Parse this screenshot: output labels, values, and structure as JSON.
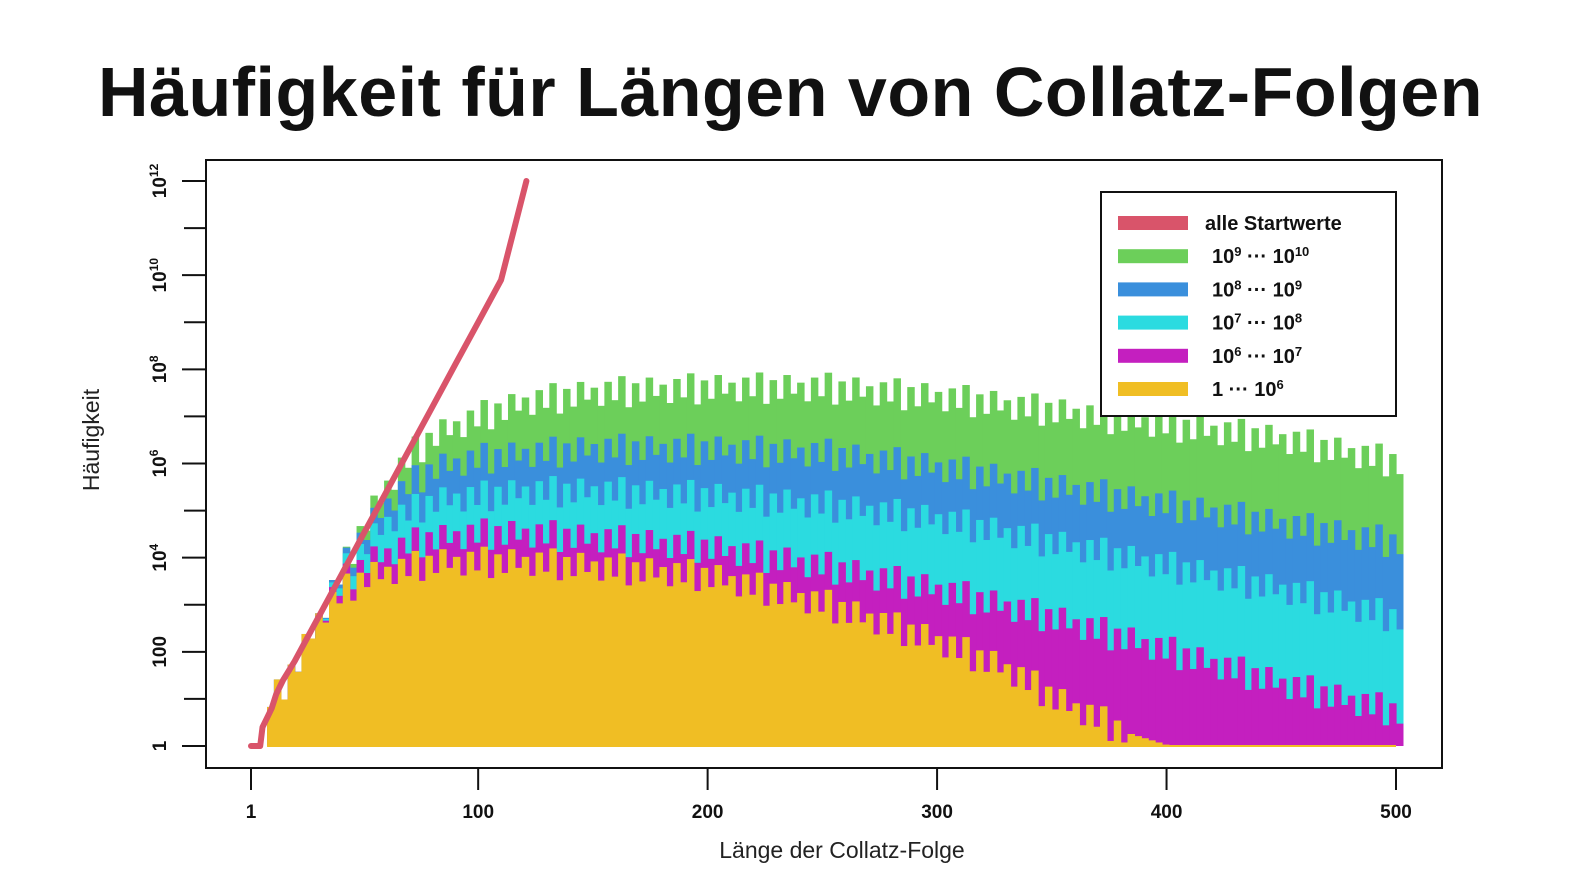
{
  "title": "Häufigkeit für Längen von Collatz-Folgen",
  "chart_data": {
    "type": "bar",
    "title": "Häufigkeit für Längen von Collatz-Folgen",
    "xlabel": "Länge der Collatz-Folge",
    "ylabel": "Häufigkeit",
    "x_scale": "linear",
    "y_scale": "log",
    "xlim": [
      1,
      500
    ],
    "ylim_log10": [
      0,
      12
    ],
    "x_ticks": [
      {
        "value": 1,
        "label": "1"
      },
      {
        "value": 100,
        "label": "100"
      },
      {
        "value": 200,
        "label": "200"
      },
      {
        "value": 300,
        "label": "300"
      },
      {
        "value": 400,
        "label": "400"
      },
      {
        "value": 500,
        "label": "500"
      }
    ],
    "y_ticks": [
      {
        "log10": 0,
        "base": "1",
        "exp": ""
      },
      {
        "log10": 2,
        "base": "100",
        "exp": ""
      },
      {
        "log10": 4,
        "base": "10",
        "exp": "4"
      },
      {
        "log10": 6,
        "base": "10",
        "exp": "6"
      },
      {
        "log10": 8,
        "base": "10",
        "exp": "8"
      },
      {
        "log10": 10,
        "base": "10",
        "exp": "10"
      },
      {
        "log10": 12,
        "base": "10",
        "exp": "12"
      }
    ],
    "y_minor_ticks_log10": [
      1,
      3,
      5,
      7,
      9,
      11
    ],
    "legend_position": "top-right",
    "series": [
      {
        "name": "alle Startwerte",
        "name_parts": [
          "alle Startwerte"
        ],
        "color": "#d9546a",
        "kind": "line",
        "points_x": [
          1,
          5,
          6,
          8,
          10,
          12,
          15,
          20,
          30,
          40,
          50,
          60,
          70,
          80,
          90,
          100,
          110,
          121
        ],
        "points_log10": [
          0,
          0,
          0.4,
          0.6,
          0.8,
          1.1,
          1.4,
          1.8,
          2.7,
          3.6,
          4.5,
          5.4,
          6.3,
          7.2,
          8.1,
          9.0,
          9.9,
          12.0
        ]
      },
      {
        "name": "10^9 ··· 10^10",
        "name_parts": [
          "10",
          "9",
          " ··· 10",
          "10"
        ],
        "color": "#6ccf5a",
        "kind": "bars",
        "profile_x": [
          10,
          20,
          30,
          40,
          50,
          60,
          70,
          80,
          100,
          120,
          150,
          200,
          250,
          300,
          350,
          400,
          450,
          500
        ],
        "profile_log10": [
          1.0,
          1.8,
          2.8,
          3.8,
          4.8,
          5.6,
          6.2,
          6.6,
          7.0,
          7.3,
          7.5,
          7.6,
          7.6,
          7.4,
          7.1,
          6.8,
          6.5,
          6.0
        ]
      },
      {
        "name": "10^8 ··· 10^9",
        "name_parts": [
          "10",
          "8",
          " ··· 10",
          "9"
        ],
        "color": "#3a8fdc",
        "kind": "bars",
        "profile_x": [
          10,
          20,
          30,
          40,
          50,
          60,
          70,
          80,
          100,
          120,
          150,
          200,
          250,
          300,
          350,
          400,
          450,
          500
        ],
        "profile_log10": [
          1.0,
          1.8,
          2.8,
          3.8,
          4.6,
          5.2,
          5.6,
          5.9,
          6.1,
          6.2,
          6.3,
          6.3,
          6.2,
          5.9,
          5.5,
          5.1,
          4.7,
          4.3
        ]
      },
      {
        "name": "10^7 ··· 10^8",
        "name_parts": [
          "10",
          "7",
          " ··· 10",
          "8"
        ],
        "color": "#2bdbe0",
        "kind": "bars",
        "profile_x": [
          10,
          20,
          30,
          40,
          50,
          60,
          70,
          80,
          100,
          120,
          150,
          200,
          250,
          300,
          350,
          400,
          450,
          500
        ],
        "profile_log10": [
          1.0,
          1.8,
          2.8,
          3.7,
          4.3,
          4.8,
          5.0,
          5.2,
          5.3,
          5.4,
          5.4,
          5.3,
          5.1,
          4.8,
          4.3,
          3.8,
          3.3,
          2.7
        ]
      },
      {
        "name": "10^6 ··· 10^7",
        "name_parts": [
          "10",
          "6",
          " ··· 10",
          "7"
        ],
        "color": "#c41fbf",
        "kind": "bars",
        "profile_x": [
          10,
          20,
          30,
          40,
          50,
          60,
          70,
          80,
          100,
          120,
          150,
          200,
          250,
          300,
          350,
          400,
          450,
          500
        ],
        "profile_log10": [
          1.0,
          1.8,
          2.8,
          3.5,
          3.9,
          4.1,
          4.3,
          4.4,
          4.5,
          4.5,
          4.4,
          4.2,
          3.8,
          3.3,
          2.7,
          2.0,
          1.3,
          0.7
        ]
      },
      {
        "name": "1 ··· 10^6",
        "name_parts": [
          "1 ··· 10",
          "6",
          "",
          ""
        ],
        "color": "#f0be24",
        "kind": "bars",
        "profile_x": [
          10,
          20,
          30,
          40,
          50,
          60,
          70,
          80,
          100,
          120,
          150,
          200,
          250,
          300,
          330,
          350,
          380,
          400,
          500
        ],
        "profile_log10": [
          1.0,
          1.8,
          2.8,
          3.3,
          3.6,
          3.7,
          3.8,
          3.9,
          3.9,
          3.9,
          3.8,
          3.6,
          3.0,
          2.2,
          1.6,
          1.0,
          0.3,
          0.0,
          0.0
        ]
      }
    ],
    "bar_stride": 3,
    "bar_noise_log10": 0.45
  }
}
